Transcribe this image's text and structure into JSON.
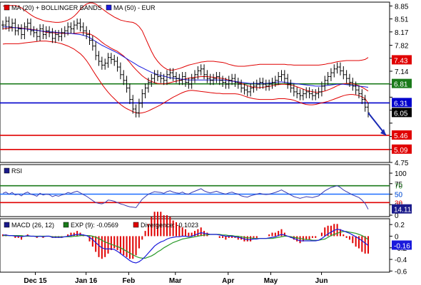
{
  "chart_data": [
    {
      "type": "candlestick",
      "panel": "price",
      "legend": [
        {
          "label": "MA (20) + BOLLINGER BANDS",
          "color": "#e00000"
        },
        {
          "label": "MA (50) - EUR",
          "color": "#1a1adc"
        }
      ],
      "y_ticks": [
        8.85,
        8.51,
        8.17,
        7.82,
        7.48,
        7.14,
        6.8,
        6.46,
        6.12,
        5.78,
        5.43,
        5.09,
        4.75
      ],
      "y_tick_labels": [
        "8.85",
        "8.51",
        "8.17",
        "7.82",
        "7.48",
        "7.14",
        "",
        "",
        "",
        "",
        "",
        "",
        "4.75"
      ],
      "ylim": [
        4.75,
        8.95
      ],
      "levels": [
        {
          "value": 6.81,
          "label": "6.81",
          "color": "#1a7a1a"
        },
        {
          "value": 6.31,
          "label": "6.31",
          "color": "#0000cc"
        },
        {
          "value": 5.46,
          "label": "5.46",
          "color": "#e00000"
        },
        {
          "value": 5.09,
          "label": "5.09",
          "color": "#e00000"
        }
      ],
      "markers": [
        {
          "value": 7.43,
          "label": "7.43",
          "color": "#e00000"
        },
        {
          "value": 6.05,
          "label": "6.05",
          "color": "#000000"
        }
      ],
      "forecast_arrow": {
        "from": [
          118,
          6.05
        ],
        "to": [
          125,
          5.46
        ],
        "color": "#1a2ab4"
      },
      "closes": [
        8.35,
        8.45,
        8.3,
        8.4,
        8.2,
        8.25,
        8.1,
        8.3,
        8.4,
        8.2,
        8.15,
        8.05,
        8.25,
        8.1,
        8.2,
        8.15,
        8.0,
        8.1,
        8.05,
        8.15,
        8.2,
        8.3,
        8.25,
        8.35,
        8.4,
        8.3,
        8.2,
        8.1,
        7.95,
        7.8,
        7.55,
        7.4,
        7.3,
        7.35,
        7.5,
        7.45,
        7.4,
        7.25,
        7.05,
        6.9,
        6.7,
        6.4,
        6.15,
        6.05,
        6.3,
        6.55,
        6.7,
        6.85,
        6.95,
        7.05,
        7.0,
        6.95,
        6.9,
        7.05,
        7.1,
        7.0,
        6.95,
        6.9,
        7.0,
        6.85,
        6.8,
        6.95,
        7.05,
        7.15,
        7.2,
        7.05,
        6.95,
        6.9,
        6.95,
        7.0,
        6.9,
        6.85,
        6.8,
        6.9,
        6.95,
        6.85,
        6.8,
        6.7,
        6.65,
        6.6,
        6.7,
        6.75,
        6.8,
        6.85,
        6.8,
        6.75,
        6.8,
        6.85,
        6.9,
        7.0,
        7.05,
        6.95,
        6.8,
        6.7,
        6.6,
        6.55,
        6.5,
        6.55,
        6.6,
        6.55,
        6.5,
        6.55,
        6.6,
        6.75,
        6.9,
        7.0,
        7.1,
        7.2,
        7.25,
        7.15,
        7.05,
        6.95,
        6.85,
        6.75,
        6.65,
        6.55,
        6.4,
        6.2,
        6.05
      ],
      "ma50": [
        8.3,
        8.3,
        8.3,
        8.29,
        8.28,
        8.27,
        8.26,
        8.25,
        8.24,
        8.23,
        8.22,
        8.21,
        8.2,
        8.19,
        8.18,
        8.17,
        8.17,
        8.16,
        8.15,
        8.15,
        8.14,
        8.14,
        8.13,
        8.12,
        8.11,
        8.1,
        8.08,
        8.06,
        8.02,
        7.97,
        7.92,
        7.87,
        7.82,
        7.78,
        7.74,
        7.7,
        7.66,
        7.62,
        7.57,
        7.52,
        7.47,
        7.42,
        7.37,
        7.32,
        7.27,
        7.23,
        7.19,
        7.15,
        7.11,
        7.08,
        7.05,
        7.03,
        7.01,
        6.99,
        6.97,
        6.96,
        6.95,
        6.94,
        6.93,
        6.92,
        6.91,
        6.91,
        6.91,
        6.91,
        6.91,
        6.91,
        6.91,
        6.91,
        6.91,
        6.91,
        6.91,
        6.91,
        6.9,
        6.89,
        6.88,
        6.87,
        6.86,
        6.85,
        6.84,
        6.83,
        6.82,
        6.82,
        6.82,
        6.82,
        6.82,
        6.82,
        6.83,
        6.84,
        6.85,
        6.86,
        6.86,
        6.85,
        6.84,
        6.83,
        6.82,
        6.81,
        6.8,
        6.79,
        6.78,
        6.77,
        6.76,
        6.75,
        6.75,
        6.75,
        6.76,
        6.77,
        6.78,
        6.79,
        6.8,
        6.8,
        6.8,
        6.79,
        6.78,
        6.77,
        6.76,
        6.75,
        6.74,
        6.73,
        6.72
      ],
      "ma20": [
        8.25,
        8.26,
        8.27,
        8.28,
        8.28,
        8.28,
        8.27,
        8.26,
        8.25,
        8.24,
        8.23,
        8.22,
        8.2,
        8.18,
        8.16,
        8.15,
        8.15,
        8.14,
        8.14,
        8.13,
        8.13,
        8.13,
        8.13,
        8.13,
        8.14,
        8.15,
        8.15,
        8.14,
        8.12,
        8.08,
        8.03,
        7.97,
        7.9,
        7.84,
        7.79,
        7.74,
        7.7,
        7.66,
        7.6,
        7.54,
        7.46,
        7.37,
        7.27,
        7.18,
        7.1,
        7.02,
        6.96,
        6.91,
        6.87,
        6.84,
        6.82,
        6.81,
        6.81,
        6.82,
        6.84,
        6.86,
        6.88,
        6.9,
        6.92,
        6.94,
        6.96,
        6.97,
        6.98,
        6.99,
        7.0,
        7.0,
        7.0,
        6.99,
        6.98,
        6.97,
        6.96,
        6.95,
        6.93,
        6.91,
        6.89,
        6.87,
        6.85,
        6.82,
        6.79,
        6.76,
        6.74,
        6.72,
        6.71,
        6.71,
        6.72,
        6.73,
        6.74,
        6.76,
        6.78,
        6.79,
        6.8,
        6.8,
        6.79,
        6.78,
        6.76,
        6.73,
        6.7,
        6.67,
        6.64,
        6.62,
        6.6,
        6.59,
        6.59,
        6.6,
        6.62,
        6.65,
        6.68,
        6.72,
        6.76,
        6.79,
        6.81,
        6.82,
        6.82,
        6.81,
        6.79,
        6.76,
        6.72,
        6.67,
        6.62
      ],
      "boll_upper": [
        8.85,
        8.85,
        8.86,
        8.86,
        8.86,
        8.84,
        8.8,
        8.74,
        8.68,
        8.62,
        8.57,
        8.53,
        8.5,
        8.47,
        8.45,
        8.44,
        8.43,
        8.42,
        8.42,
        8.43,
        8.45,
        8.48,
        8.52,
        8.58,
        8.66,
        8.76,
        8.84,
        8.9,
        8.93,
        8.93,
        8.9,
        8.84,
        8.78,
        8.72,
        8.66,
        8.61,
        8.56,
        8.52,
        8.48,
        8.46,
        8.44,
        8.43,
        8.42,
        8.38,
        8.31,
        8.2,
        8.02,
        7.84,
        7.66,
        7.51,
        7.4,
        7.31,
        7.24,
        7.19,
        7.17,
        7.17,
        7.19,
        7.21,
        7.24,
        7.27,
        7.3,
        7.32,
        7.34,
        7.36,
        7.38,
        7.39,
        7.4,
        7.4,
        7.4,
        7.39,
        7.38,
        7.37,
        7.35,
        7.32,
        7.3,
        7.28,
        7.27,
        7.27,
        7.27,
        7.28,
        7.29,
        7.3,
        7.31,
        7.32,
        7.32,
        7.32,
        7.32,
        7.32,
        7.32,
        7.32,
        7.32,
        7.32,
        7.31,
        7.31,
        7.3,
        7.3,
        7.3,
        7.3,
        7.3,
        7.3,
        7.3,
        7.3,
        7.3,
        7.31,
        7.32,
        7.34,
        7.35,
        7.37,
        7.39,
        7.4,
        7.41,
        7.42,
        7.42,
        7.42,
        7.42,
        7.42,
        7.43,
        7.45,
        7.5
      ],
      "boll_lower": [
        7.85,
        7.86,
        7.86,
        7.86,
        7.86,
        7.86,
        7.87,
        7.88,
        7.89,
        7.9,
        7.91,
        7.92,
        7.93,
        7.93,
        7.93,
        7.92,
        7.91,
        7.9,
        7.88,
        7.86,
        7.83,
        7.8,
        7.76,
        7.72,
        7.66,
        7.6,
        7.52,
        7.42,
        7.3,
        7.17,
        7.04,
        6.92,
        6.8,
        6.69,
        6.59,
        6.5,
        6.42,
        6.34,
        6.27,
        6.21,
        6.16,
        6.12,
        6.08,
        6.05,
        6.04,
        6.05,
        6.07,
        6.1,
        6.14,
        6.18,
        6.22,
        6.26,
        6.31,
        6.36,
        6.41,
        6.46,
        6.5,
        6.54,
        6.58,
        6.61,
        6.63,
        6.64,
        6.63,
        6.62,
        6.61,
        6.6,
        6.59,
        6.58,
        6.57,
        6.56,
        6.56,
        6.55,
        6.55,
        6.55,
        6.55,
        6.55,
        6.54,
        6.52,
        6.49,
        6.46,
        6.44,
        6.42,
        6.41,
        6.4,
        6.4,
        6.4,
        6.4,
        6.4,
        6.41,
        6.42,
        6.42,
        6.42,
        6.41,
        6.4,
        6.38,
        6.35,
        6.32,
        6.29,
        6.27,
        6.26,
        6.26,
        6.27,
        6.29,
        6.31,
        6.33,
        6.35,
        6.38,
        6.41,
        6.44,
        6.47,
        6.5,
        6.52,
        6.53,
        6.53,
        6.52,
        6.5,
        6.47,
        6.42,
        6.3
      ]
    },
    {
      "type": "line",
      "panel": "rsi",
      "legend": [
        {
          "label": "RSI",
          "color": "#1a1a8a"
        }
      ],
      "y_ticks": [
        100,
        75,
        50,
        25,
        0
      ],
      "y_tick_labels": [
        "100",
        "75",
        "50",
        "25",
        "0"
      ],
      "ylim": [
        0,
        100
      ],
      "levels": [
        {
          "value": 70,
          "label": "70",
          "color": "#1a7a1a"
        },
        {
          "value": 50,
          "label": "50",
          "color": "#1e6eff"
        },
        {
          "value": 30,
          "label": "30",
          "color": "#e00000"
        }
      ],
      "current": {
        "value": 14.11,
        "label": "14.11"
      },
      "values": [
        52,
        55,
        50,
        54,
        48,
        50,
        46,
        52,
        55,
        50,
        48,
        45,
        52,
        48,
        50,
        49,
        44,
        47,
        45,
        48,
        50,
        54,
        52,
        55,
        57,
        53,
        49,
        45,
        40,
        35,
        30,
        28,
        27,
        30,
        36,
        35,
        33,
        30,
        27,
        25,
        22,
        20,
        19,
        18,
        28,
        38,
        44,
        50,
        53,
        56,
        55,
        54,
        52,
        56,
        58,
        55,
        53,
        52,
        55,
        51,
        50,
        54,
        57,
        60,
        63,
        58,
        55,
        53,
        55,
        57,
        54,
        52,
        50,
        53,
        55,
        52,
        50,
        46,
        44,
        43,
        46,
        48,
        50,
        52,
        50,
        49,
        50,
        52,
        54,
        57,
        60,
        56,
        52,
        48,
        44,
        42,
        40,
        42,
        44,
        43,
        42,
        44,
        46,
        52,
        58,
        62,
        66,
        68,
        70,
        66,
        60,
        56,
        52,
        48,
        45,
        42,
        36,
        28,
        14.11
      ]
    },
    {
      "type": "bar+line",
      "panel": "macd",
      "legend": [
        {
          "label": "MACD (26, 12)",
          "color": "#1a1a8a"
        },
        {
          "label": "EXP (9): -0.0569",
          "color": "#1a7a1a"
        },
        {
          "label": "Divergence: -0.1023",
          "color": "#e00000"
        }
      ],
      "y_ticks": [
        0.2,
        0.0,
        -0.2,
        -0.4,
        -0.6
      ],
      "y_tick_labels": [
        "0.2",
        "0",
        "-0.2",
        "-0.4",
        "-0.6"
      ],
      "ylim": [
        -0.62,
        0.3
      ],
      "current": {
        "value": -0.16,
        "label": "-0.16"
      },
      "macd": [
        0.02,
        0.02,
        0.01,
        0.01,
        0.0,
        0.0,
        -0.01,
        0.0,
        0.01,
        0.0,
        0.0,
        -0.01,
        0.0,
        -0.01,
        0.0,
        0.0,
        -0.02,
        -0.02,
        -0.02,
        -0.02,
        -0.01,
        0.0,
        0.01,
        0.02,
        0.03,
        0.03,
        0.02,
        0.01,
        -0.02,
        -0.06,
        -0.11,
        -0.16,
        -0.2,
        -0.22,
        -0.22,
        -0.22,
        -0.23,
        -0.26,
        -0.3,
        -0.34,
        -0.38,
        -0.42,
        -0.45,
        -0.46,
        -0.44,
        -0.4,
        -0.35,
        -0.29,
        -0.23,
        -0.17,
        -0.13,
        -0.1,
        -0.08,
        -0.05,
        -0.03,
        -0.02,
        -0.01,
        -0.01,
        0.0,
        0.0,
        -0.01,
        0.0,
        0.02,
        0.04,
        0.06,
        0.05,
        0.04,
        0.03,
        0.03,
        0.03,
        0.02,
        0.01,
        0.0,
        0.0,
        0.0,
        -0.01,
        -0.02,
        -0.03,
        -0.05,
        -0.06,
        -0.06,
        -0.05,
        -0.05,
        -0.04,
        -0.04,
        -0.04,
        -0.03,
        -0.02,
        -0.01,
        0.01,
        0.03,
        0.02,
        0.0,
        -0.02,
        -0.04,
        -0.06,
        -0.08,
        -0.08,
        -0.08,
        -0.08,
        -0.08,
        -0.08,
        -0.07,
        -0.04,
        0.0,
        0.04,
        0.07,
        0.1,
        0.12,
        0.11,
        0.09,
        0.07,
        0.05,
        0.02,
        -0.01,
        -0.04,
        -0.08,
        -0.12,
        -0.16
      ],
      "signal": [
        0.01,
        0.01,
        0.01,
        0.01,
        0.01,
        0.01,
        0.01,
        0.0,
        0.0,
        0.0,
        0.0,
        0.0,
        0.0,
        0.0,
        0.0,
        0.0,
        -0.01,
        -0.01,
        -0.01,
        -0.01,
        -0.01,
        -0.01,
        -0.01,
        0.0,
        0.0,
        0.01,
        0.01,
        0.01,
        0.01,
        0.0,
        -0.02,
        -0.04,
        -0.07,
        -0.1,
        -0.12,
        -0.14,
        -0.16,
        -0.18,
        -0.2,
        -0.23,
        -0.26,
        -0.29,
        -0.32,
        -0.35,
        -0.37,
        -0.38,
        -0.38,
        -0.36,
        -0.34,
        -0.31,
        -0.27,
        -0.24,
        -0.2,
        -0.17,
        -0.14,
        -0.11,
        -0.09,
        -0.07,
        -0.05,
        -0.04,
        -0.03,
        -0.02,
        -0.01,
        0.0,
        0.01,
        0.02,
        0.02,
        0.03,
        0.03,
        0.03,
        0.03,
        0.02,
        0.02,
        0.01,
        0.01,
        0.0,
        0.0,
        -0.01,
        -0.02,
        -0.03,
        -0.03,
        -0.04,
        -0.04,
        -0.04,
        -0.04,
        -0.04,
        -0.04,
        -0.04,
        -0.03,
        -0.02,
        -0.01,
        0.0,
        0.0,
        -0.01,
        -0.02,
        -0.03,
        -0.04,
        -0.05,
        -0.06,
        -0.06,
        -0.07,
        -0.07,
        -0.07,
        -0.06,
        -0.05,
        -0.02,
        0.01,
        0.03,
        0.05,
        0.07,
        0.08,
        0.08,
        0.07,
        0.06,
        0.05,
        0.03,
        0.01,
        -0.02,
        -0.06
      ]
    }
  ],
  "x_axis": {
    "labels": [
      {
        "label": "Dec 15",
        "index": 16
      },
      {
        "label": "Jan 16",
        "index": 41
      },
      {
        "label": "Feb",
        "index": 62
      },
      {
        "label": "Mar",
        "index": 85
      },
      {
        "label": "Apr",
        "index": 111
      },
      {
        "label": "May",
        "index": 132
      },
      {
        "label": "Jun",
        "index": 157
      }
    ]
  }
}
